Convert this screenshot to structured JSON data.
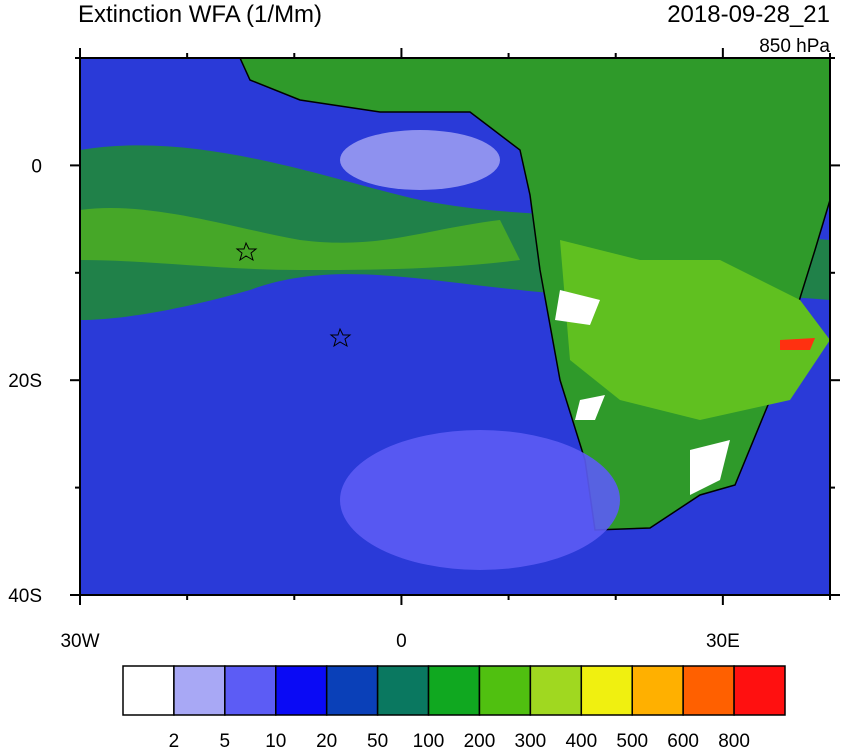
{
  "title": "Extinction WFA (1/Mm)",
  "date": "2018-09-28_21",
  "level": "850 hPa",
  "lon_axis": {
    "lim": [
      -30,
      40
    ],
    "ticks": [
      {
        "value": -30,
        "label": "30W"
      },
      0,
      {
        "value": 30,
        "label": "30E"
      }
    ],
    "minor": [
      -20,
      -10,
      10,
      20,
      40
    ]
  },
  "lat_axis": {
    "lim": [
      -40,
      10
    ],
    "ticks": [
      0,
      {
        "value": -20,
        "label": "20S"
      },
      {
        "value": -40,
        "label": "40S"
      }
    ],
    "minor": [
      10,
      -10,
      -30
    ]
  },
  "colorbar": {
    "levels": [
      2,
      5,
      10,
      20,
      50,
      100,
      200,
      300,
      400,
      500,
      600,
      800
    ],
    "colors": [
      "#ffffff",
      "#a8a8f5",
      "#5c5cf5",
      "#0a0af5",
      "#0a40b8",
      "#0a7860",
      "#10a820",
      "#50c010",
      "#a0d820",
      "#f0f010",
      "#ffb000",
      "#ff6000",
      "#ff1010"
    ]
  }
}
